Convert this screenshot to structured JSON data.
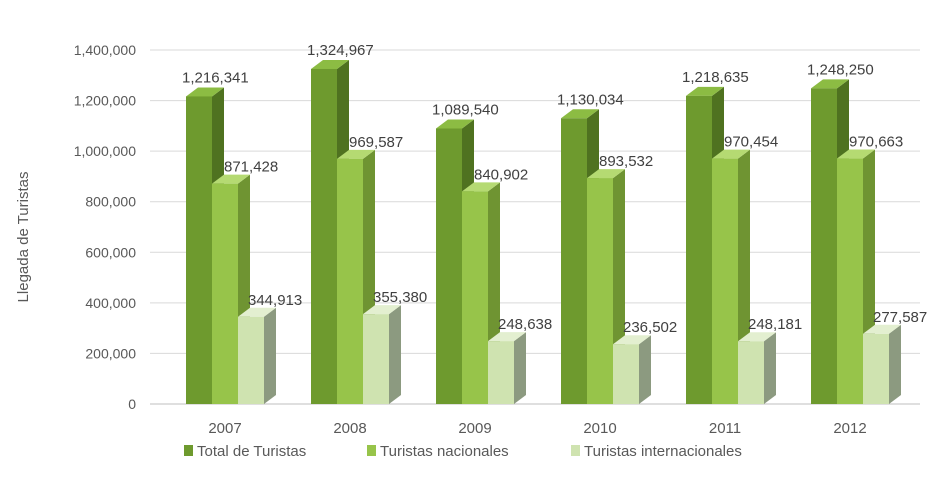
{
  "chart_data": {
    "type": "bar",
    "title": "",
    "xlabel": "",
    "ylabel": "Llegada de Turistas",
    "categories": [
      "2007",
      "2008",
      "2009",
      "2010",
      "2011",
      "2012"
    ],
    "series": [
      {
        "name": "Total de Turistas",
        "values": [
          1216341,
          1324967,
          1089540,
          1130034,
          1218635,
          1248250
        ]
      },
      {
        "name": "Turistas nacionales",
        "values": [
          871428,
          969587,
          840902,
          893532,
          970454,
          970663
        ]
      },
      {
        "name": "Turistas internacionales",
        "values": [
          344913,
          355380,
          248638,
          236502,
          248181,
          277587
        ]
      }
    ],
    "data_labels": [
      [
        "1,216,341",
        "1,324,967",
        "1,089,540",
        "1,130,034",
        "1,218,635",
        "1,248,250"
      ],
      [
        "871,428",
        "969,587",
        "840,902",
        "893,532",
        "970,454",
        "970,663"
      ],
      [
        "344,913",
        "355,380",
        "248,638",
        "236,502",
        "248,181",
        "277,587"
      ]
    ],
    "ylim": [
      0,
      1400000
    ],
    "yticks": [
      0,
      200000,
      400000,
      600000,
      800000,
      1000000,
      1200000,
      1400000
    ],
    "ytick_labels": [
      "0",
      "200,000",
      "400,000",
      "600,000",
      "800,000",
      "1,000,000",
      "1,200,000",
      "1,400,000"
    ],
    "grid": true,
    "legend_position": "bottom",
    "style": "3d-clustered-column",
    "colors": {
      "series": [
        {
          "front": "#6e9a2e",
          "side": "#4f7220",
          "top": "#8cbc43"
        },
        {
          "front": "#97c44a",
          "side": "#6f9432",
          "top": "#b5da72"
        },
        {
          "front": "#cfe3b0",
          "side": "#8c9a80",
          "top": "#e3efd0"
        }
      ],
      "grid": "#d9d9d9",
      "axis_text": "#595959",
      "label_text": "#404040"
    }
  }
}
